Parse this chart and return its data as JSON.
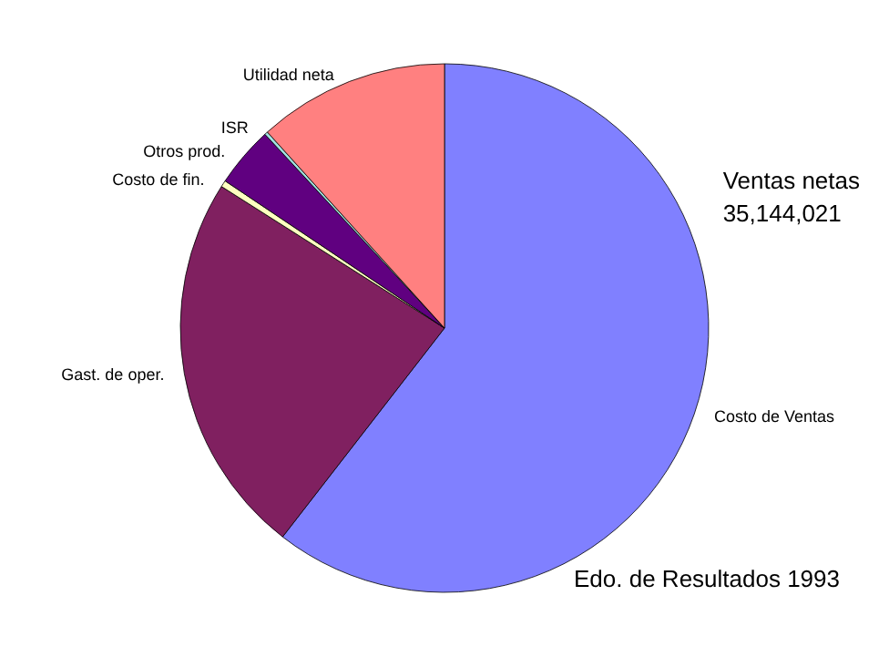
{
  "chart_data": {
    "type": "pie",
    "title": "Edo. de Resultados 1993",
    "annotations": [
      "Ventas netas\n35,144,021"
    ],
    "categories": [
      "Costo de Ventas",
      "Gast. de oper.",
      "Costo de fin.",
      "Otros prod.",
      "ISR",
      "Utilidad neta"
    ],
    "values": [
      60.5,
      23.5,
      0.4,
      3.7,
      0.2,
      11.7
    ],
    "colors": [
      "#8080ff",
      "#802060",
      "#ffffc0",
      "#600080",
      "#a0e0e0",
      "#ff8080"
    ],
    "legend": false
  }
}
